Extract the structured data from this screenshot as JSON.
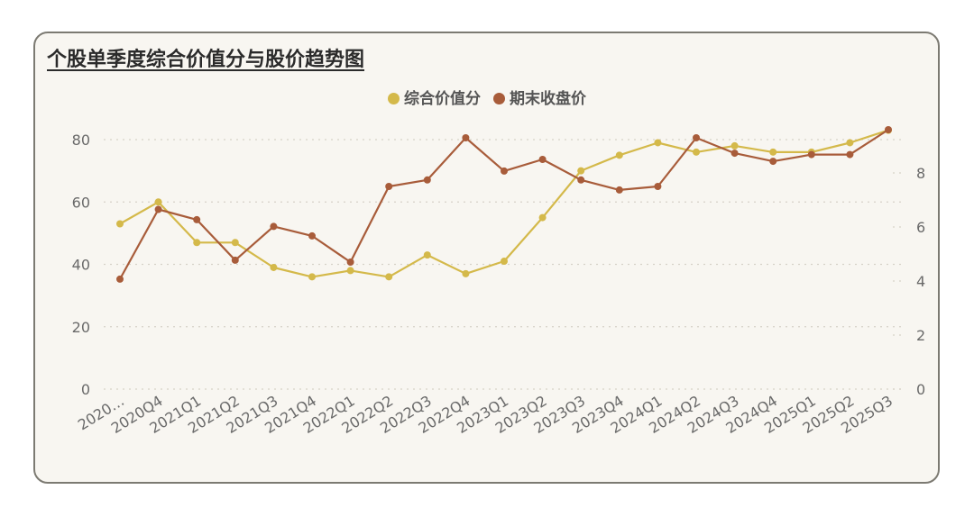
{
  "chart_data": {
    "type": "line",
    "title": "个股单季度综合价值分与股价趋势图",
    "categories": [
      "2020…",
      "2020Q4",
      "2021Q1",
      "2021Q2",
      "2021Q3",
      "2021Q4",
      "2022Q1",
      "2022Q2",
      "2022Q3",
      "2022Q4",
      "2023Q1",
      "2023Q2",
      "2023Q3",
      "2023Q4",
      "2024Q1",
      "2024Q2",
      "2024Q3",
      "2024Q4",
      "2025Q1",
      "2025Q2",
      "2025Q3"
    ],
    "y_left": {
      "ticks": [
        0,
        20,
        40,
        60,
        80
      ],
      "range": [
        0,
        90
      ]
    },
    "y_right": {
      "ticks": [
        0,
        2,
        4,
        6,
        8
      ],
      "range": [
        0,
        10
      ]
    },
    "grid": true,
    "legend": "top-center",
    "series": [
      {
        "name": "综合价值分",
        "axis": "left",
        "color": "#d4b94a",
        "values": [
          53,
          60,
          47,
          47,
          39,
          36,
          38,
          36,
          43,
          37,
          41,
          55,
          70,
          75,
          79,
          76,
          78,
          76,
          76,
          79,
          83
        ]
      },
      {
        "name": "期末收盘价",
        "axis": "right",
        "color": "#a85c3a",
        "values": [
          4.07,
          6.65,
          6.27,
          4.77,
          6.02,
          5.67,
          4.7,
          7.5,
          7.74,
          9.3,
          8.07,
          8.5,
          7.74,
          7.37,
          7.5,
          9.3,
          8.73,
          8.43,
          8.68,
          8.68,
          9.6
        ]
      }
    ]
  }
}
